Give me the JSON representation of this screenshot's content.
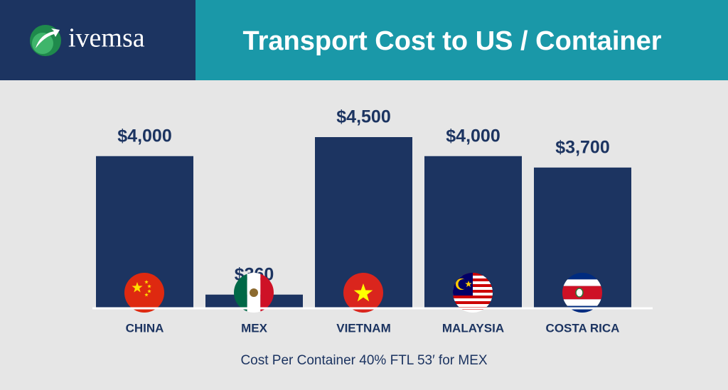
{
  "chart_data": {
    "type": "bar",
    "brand": "ivemsa",
    "title": "Transport Cost to US / Container",
    "categories": [
      "CHINA",
      "MEX",
      "VIETNAM",
      "MALAYSIA",
      "COSTA RICA"
    ],
    "values": [
      4000,
      360,
      4500,
      4000,
      3700
    ],
    "value_labels": [
      "$4,000",
      "$360",
      "$4,500",
      "$4,000",
      "$3,700"
    ],
    "color": "#1c3461",
    "footnote": "Cost Per Container 40% FTL 53′ for MEX"
  }
}
